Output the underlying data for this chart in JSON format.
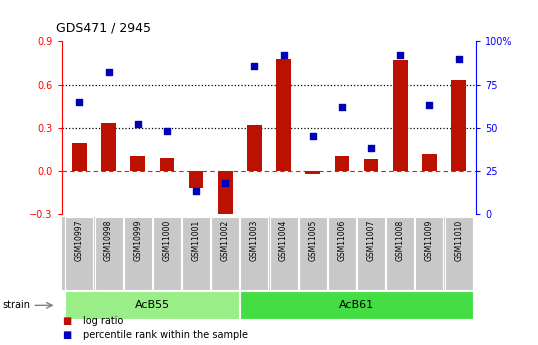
{
  "title": "GDS471 / 2945",
  "samples": [
    "GSM10997",
    "GSM10998",
    "GSM10999",
    "GSM11000",
    "GSM11001",
    "GSM11002",
    "GSM11003",
    "GSM11004",
    "GSM11005",
    "GSM11006",
    "GSM11007",
    "GSM11008",
    "GSM11009",
    "GSM11010"
  ],
  "log_ratio": [
    0.19,
    0.33,
    0.1,
    0.09,
    -0.12,
    -0.33,
    0.32,
    0.78,
    -0.02,
    0.1,
    0.08,
    0.77,
    0.12,
    0.63
  ],
  "percentile_pct": [
    65,
    82,
    52,
    48,
    13,
    18,
    86,
    92,
    45,
    62,
    38,
    92,
    63,
    90
  ],
  "groups": [
    {
      "name": "AcB55",
      "start": 0,
      "end": 5,
      "color": "#99EE88"
    },
    {
      "name": "AcB61",
      "start": 6,
      "end": 13,
      "color": "#44DD44"
    }
  ],
  "ylim_left": [
    -0.3,
    0.9
  ],
  "ylim_right": [
    0,
    100
  ],
  "yticks_left": [
    -0.3,
    0.0,
    0.3,
    0.6,
    0.9
  ],
  "yticks_right": [
    0,
    25,
    50,
    75,
    100
  ],
  "bar_color": "#BB1100",
  "dot_color": "#0000BB",
  "bg_color": "#FFFFFF",
  "label_bg": "#C8C8C8",
  "strain_label": "strain",
  "legend_items": [
    "log ratio",
    "percentile rank within the sample"
  ]
}
